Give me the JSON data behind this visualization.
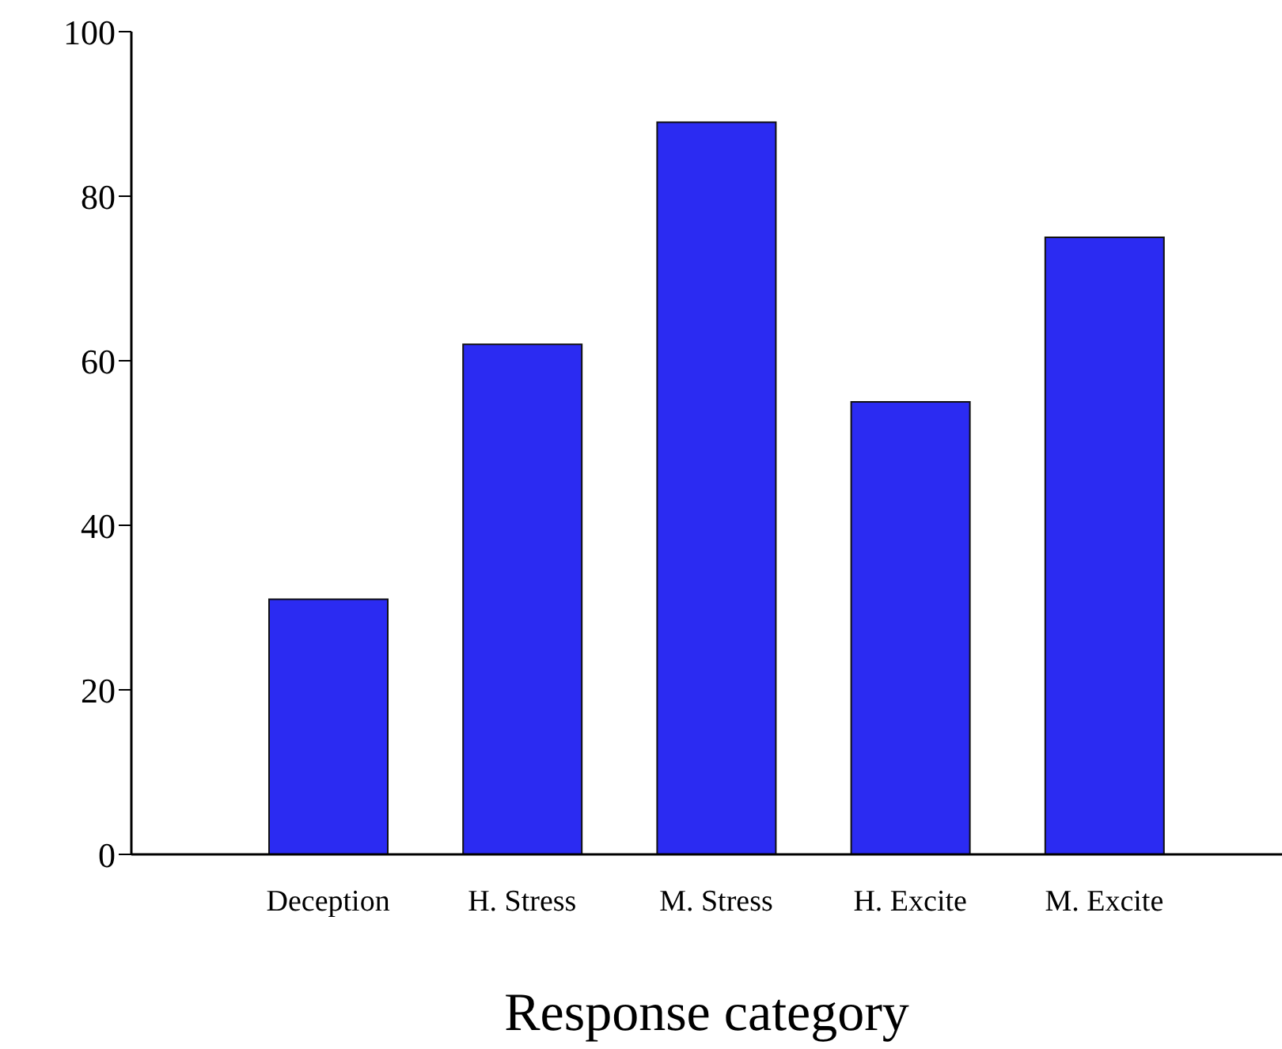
{
  "chart_data": {
    "type": "bar",
    "xlabel": "Response category",
    "categories": [
      "Deception",
      "H. Stress",
      "M. Stress",
      "H. Excite",
      "M. Excite"
    ],
    "values": [
      31,
      62,
      89,
      55,
      75
    ],
    "color": "#2b2bf2",
    "ylim": [
      0,
      100
    ],
    "yticks": [
      0,
      20,
      40,
      60,
      80,
      100
    ],
    "grid": false,
    "legend": false
  }
}
